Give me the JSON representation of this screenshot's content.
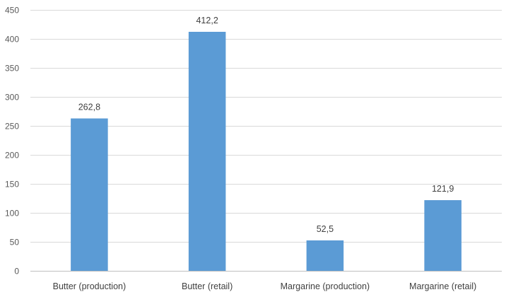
{
  "chart_data": {
    "type": "bar",
    "title": "",
    "xlabel": "",
    "ylabel": "",
    "categories": [
      "Butter (production)",
      "Butter (retail)",
      "Margarine (production)",
      "Margarine (retail)"
    ],
    "values": [
      262.8,
      412.2,
      52.5,
      121.9
    ],
    "data_labels": [
      "262,8",
      "412,2",
      "52,5",
      "121,9"
    ],
    "ylim": [
      0,
      450
    ],
    "yticks": [
      0,
      50,
      100,
      150,
      200,
      250,
      300,
      350,
      400,
      450
    ],
    "grid": true,
    "legend": "none",
    "bar_color": "#5b9bd5"
  }
}
